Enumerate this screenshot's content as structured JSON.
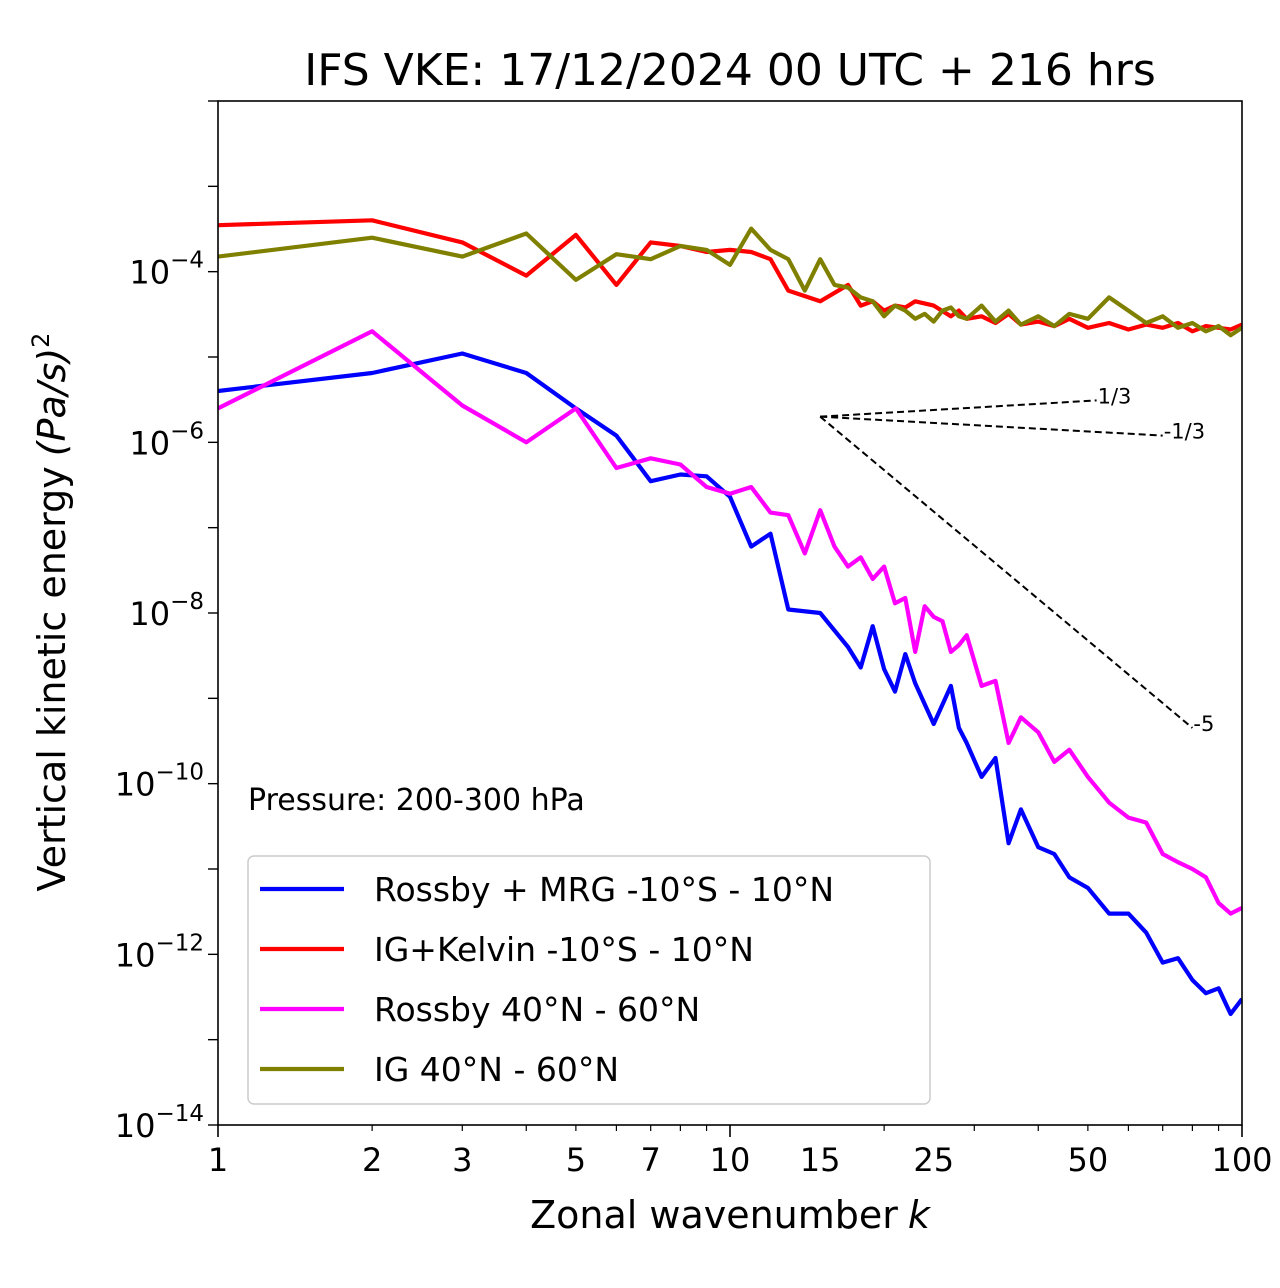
{
  "chart_data": {
    "type": "line",
    "title": "IFS VKE: 17/12/2024 00 UTC + 216 hrs",
    "xlabel": "Zonal wavenumber",
    "xlabel_var": "k",
    "ylabel": "Vertical kinetic energy",
    "ylabel_math": "(Pa/s)",
    "ylabel_power": "2",
    "xscale": "log",
    "yscale": "log",
    "xlim": [
      1,
      100
    ],
    "ylim": [
      1e-14,
      0.01
    ],
    "x_ticks": [
      1,
      2,
      3,
      5,
      7,
      10,
      15,
      25,
      50,
      100
    ],
    "x_tick_labels": [
      "1",
      "2",
      "3",
      "5",
      "7",
      "10",
      "15",
      "25",
      "50",
      "100"
    ],
    "y_ticks": [
      -4,
      -6,
      -8,
      -10,
      -12,
      -14
    ],
    "y_tick_base": "10",
    "y_tick_labels": [
      "−4",
      "−6",
      "−8",
      "−10",
      "−12",
      "−14"
    ],
    "annotation": "Pressure: 200-300 hPa",
    "legend_position": "lower-left",
    "slope_lines": [
      {
        "label": "1/3",
        "x0": 15,
        "y0": 2e-06,
        "x1": 52,
        "y1": 3.1e-06
      },
      {
        "label": "-1/3",
        "x0": 15,
        "y0": 2e-06,
        "x1": 70,
        "y1": 1.2e-06
      },
      {
        "label": "-5",
        "x0": 15,
        "y0": 2e-06,
        "x1": 80,
        "y1": 4.5e-10
      }
    ],
    "series": [
      {
        "name": "Rossby + MRG -10°S - 10°N",
        "color": "#0000ff",
        "x": [
          1,
          2,
          3,
          4,
          5,
          6,
          7,
          8,
          9,
          10,
          11,
          12,
          13,
          15,
          17,
          18,
          19,
          20,
          21,
          22,
          23,
          25,
          27,
          28,
          29,
          31,
          33,
          35,
          37,
          40,
          43,
          46,
          50,
          55,
          60,
          65,
          70,
          75,
          80,
          85,
          90,
          95,
          100
        ],
        "y": [
          4e-06,
          6.5e-06,
          1.1e-05,
          6.5e-06,
          2.5e-06,
          1.2e-06,
          3.5e-07,
          4.2e-07,
          4e-07,
          2.3e-07,
          6e-08,
          8.5e-08,
          1.1e-08,
          1e-08,
          4e-09,
          2.3e-09,
          7e-09,
          2.2e-09,
          1.2e-09,
          3.3e-09,
          1.5e-09,
          5e-10,
          1.4e-09,
          4.5e-10,
          3e-10,
          1.2e-10,
          2e-10,
          2e-11,
          5e-11,
          1.8e-11,
          1.5e-11,
          8e-12,
          6e-12,
          3e-12,
          3e-12,
          1.8e-12,
          8e-13,
          9e-13,
          5e-13,
          3.5e-13,
          4e-13,
          2e-13,
          3e-13
        ]
      },
      {
        "name": "IG+Kelvin -10°S - 10°N",
        "color": "#ff0000",
        "x": [
          1,
          2,
          3,
          4,
          5,
          6,
          7,
          8,
          9,
          10,
          11,
          12,
          13,
          15,
          17,
          18,
          19,
          20,
          21,
          22,
          23,
          25,
          27,
          28,
          29,
          31,
          33,
          35,
          37,
          40,
          43,
          46,
          50,
          55,
          60,
          65,
          70,
          75,
          80,
          85,
          90,
          95,
          100
        ],
        "y": [
          0.00035,
          0.0004,
          0.00022,
          9e-05,
          0.00027,
          7e-05,
          0.00022,
          0.0002,
          0.00017,
          0.00018,
          0.00017,
          0.00014,
          6e-05,
          4.5e-05,
          7e-05,
          4e-05,
          4.5e-05,
          3.5e-05,
          4e-05,
          3.8e-05,
          4.5e-05,
          4e-05,
          3e-05,
          3.5e-05,
          2.8e-05,
          3e-05,
          2.5e-05,
          3.2e-05,
          2.4e-05,
          2.6e-05,
          2.3e-05,
          2.8e-05,
          2.2e-05,
          2.5e-05,
          2.1e-05,
          2.4e-05,
          2.2e-05,
          2.5e-05,
          2e-05,
          2.3e-05,
          2.2e-05,
          2.1e-05,
          2.4e-05
        ]
      },
      {
        "name": "Rossby 40°N - 60°N",
        "color": "#ff00ff",
        "x": [
          1,
          2,
          3,
          4,
          5,
          6,
          7,
          8,
          9,
          10,
          11,
          12,
          13,
          14,
          15,
          16,
          17,
          18,
          19,
          20,
          21,
          22,
          23,
          24,
          25,
          26,
          27,
          28,
          29,
          31,
          33,
          35,
          37,
          40,
          43,
          46,
          50,
          55,
          60,
          65,
          70,
          75,
          80,
          85,
          90,
          95,
          100
        ],
        "y": [
          2.5e-06,
          2e-05,
          2.7e-06,
          1e-06,
          2.5e-06,
          5e-07,
          6.5e-07,
          5.5e-07,
          3e-07,
          2.5e-07,
          3e-07,
          1.5e-07,
          1.4e-07,
          5e-08,
          1.6e-07,
          6e-08,
          3.5e-08,
          4.5e-08,
          2.5e-08,
          3.5e-08,
          1.3e-08,
          1.5e-08,
          3.5e-09,
          1.2e-08,
          9e-09,
          8e-09,
          3.5e-09,
          4.2e-09,
          5.5e-09,
          1.4e-09,
          1.6e-09,
          3e-10,
          6e-10,
          4e-10,
          1.8e-10,
          2.5e-10,
          1.2e-10,
          6e-11,
          4e-11,
          3.5e-11,
          1.5e-11,
          1.2e-11,
          1e-11,
          8e-12,
          4e-12,
          3e-12,
          3.5e-12
        ]
      },
      {
        "name": "IG 40°N - 60°N",
        "color": "#808000",
        "x": [
          1,
          2,
          3,
          4,
          5,
          6,
          7,
          8,
          9,
          10,
          11,
          12,
          13,
          14,
          15,
          16,
          17,
          18,
          19,
          20,
          21,
          22,
          23,
          24,
          25,
          26,
          27,
          28,
          29,
          31,
          33,
          35,
          37,
          40,
          43,
          46,
          50,
          55,
          60,
          65,
          70,
          75,
          80,
          85,
          90,
          95,
          100
        ],
        "y": [
          0.00015,
          0.00025,
          0.00015,
          0.00028,
          8e-05,
          0.00016,
          0.00014,
          0.0002,
          0.00018,
          0.00012,
          0.00032,
          0.00018,
          0.00014,
          6e-05,
          0.00014,
          7e-05,
          6.5e-05,
          5e-05,
          4.5e-05,
          3e-05,
          4e-05,
          3.5e-05,
          2.8e-05,
          3.2e-05,
          2.6e-05,
          3.5e-05,
          3.8e-05,
          3e-05,
          2.8e-05,
          4e-05,
          2.6e-05,
          3.5e-05,
          2.4e-05,
          3e-05,
          2.3e-05,
          3.2e-05,
          2.8e-05,
          5e-05,
          3.5e-05,
          2.5e-05,
          3e-05,
          2.2e-05,
          2.5e-05,
          2e-05,
          2.3e-05,
          1.8e-05,
          2.2e-05
        ]
      }
    ]
  }
}
